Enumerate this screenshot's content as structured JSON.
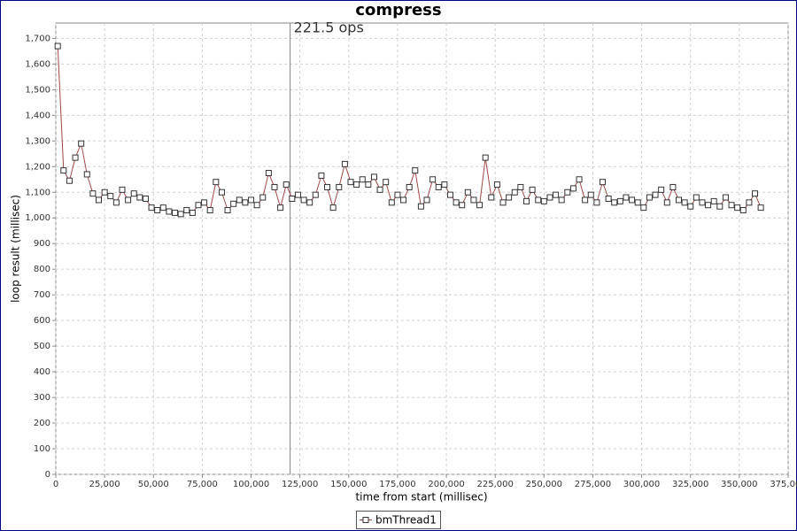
{
  "chart_data": {
    "type": "line",
    "title": "compress",
    "x_label": "time from start (millisec)",
    "y_label": "loop result (millisec)",
    "xlim": [
      0,
      375000
    ],
    "ylim": [
      0,
      1760
    ],
    "xticks": [
      0,
      {
        "value": 25000,
        "label": "25,000"
      },
      {
        "value": 50000,
        "label": "50,000"
      },
      {
        "value": 75000,
        "label": "75,000"
      },
      {
        "value": 100000,
        "label": "100,000"
      },
      {
        "value": 125000,
        "label": "125,000"
      },
      {
        "value": 150000,
        "label": "150,000"
      },
      {
        "value": 175000,
        "label": "175,000"
      },
      {
        "value": 200000,
        "label": "200,000"
      },
      {
        "value": 225000,
        "label": "225,000"
      },
      {
        "value": 250000,
        "label": "250,000"
      },
      {
        "value": 275000,
        "label": "275,000"
      },
      {
        "value": 300000,
        "label": "300,000"
      },
      {
        "value": 325000,
        "label": "325,000"
      },
      {
        "value": 350000,
        "label": "350,000"
      },
      {
        "value": 375000,
        "label": "375,000"
      }
    ],
    "yticks": [
      0,
      100,
      200,
      300,
      400,
      500,
      600,
      700,
      800,
      900,
      {
        "value": 1000,
        "label": "1,000"
      },
      {
        "value": 1100,
        "label": "1,100"
      },
      {
        "value": 1200,
        "label": "1,200"
      },
      {
        "value": 1300,
        "label": "1,300"
      },
      {
        "value": 1400,
        "label": "1,400"
      },
      {
        "value": 1500,
        "label": "1,500"
      },
      {
        "value": 1600,
        "label": "1,600"
      },
      {
        "value": 1700,
        "label": "1,700"
      }
    ],
    "grid": true,
    "marker": {
      "x": 120000,
      "label": "221.5 ops"
    },
    "x": [
      1000,
      4000,
      7000,
      10000,
      13000,
      16000,
      19000,
      22000,
      25000,
      28000,
      31000,
      34000,
      37000,
      40000,
      43000,
      46000,
      49000,
      52000,
      55000,
      58000,
      61000,
      64000,
      67000,
      70000,
      73000,
      76000,
      79000,
      82000,
      85000,
      88000,
      91000,
      94000,
      97000,
      100000,
      103000,
      106000,
      109000,
      112000,
      115000,
      118000,
      121000,
      124000,
      127000,
      130000,
      133000,
      136000,
      139000,
      142000,
      145000,
      148000,
      151000,
      154000,
      157000,
      160000,
      163000,
      166000,
      169000,
      172000,
      175000,
      178000,
      181000,
      184000,
      187000,
      190000,
      193000,
      196000,
      199000,
      202000,
      205000,
      208000,
      211000,
      214000,
      217000,
      220000,
      223000,
      226000,
      229000,
      232000,
      235000,
      238000,
      241000,
      244000,
      247000,
      250000,
      253000,
      256000,
      259000,
      262000,
      265000,
      268000,
      271000,
      274000,
      277000,
      280000,
      283000,
      286000,
      289000,
      292000,
      295000,
      298000,
      301000,
      304000,
      307000,
      310000,
      313000,
      316000,
      319000,
      322000,
      325000,
      328000,
      331000,
      334000,
      337000,
      340000,
      343000,
      346000,
      349000,
      352000,
      355000,
      358000,
      361000
    ],
    "series": [
      {
        "name": "bmThread1",
        "color": "#a04848",
        "marker_color": "#333333",
        "values": [
          1670,
          1185,
          1145,
          1235,
          1290,
          1170,
          1095,
          1070,
          1100,
          1085,
          1060,
          1110,
          1070,
          1095,
          1080,
          1075,
          1040,
          1030,
          1040,
          1025,
          1020,
          1015,
          1030,
          1020,
          1050,
          1060,
          1030,
          1140,
          1100,
          1030,
          1055,
          1070,
          1060,
          1070,
          1050,
          1080,
          1175,
          1120,
          1040,
          1130,
          1075,
          1090,
          1070,
          1060,
          1090,
          1165,
          1120,
          1040,
          1120,
          1210,
          1140,
          1130,
          1150,
          1130,
          1160,
          1110,
          1140,
          1060,
          1090,
          1070,
          1120,
          1185,
          1045,
          1070,
          1150,
          1120,
          1130,
          1090,
          1060,
          1050,
          1100,
          1070,
          1050,
          1235,
          1080,
          1130,
          1060,
          1080,
          1100,
          1120,
          1065,
          1110,
          1070,
          1065,
          1080,
          1090,
          1070,
          1100,
          1115,
          1150,
          1070,
          1090,
          1060,
          1140,
          1075,
          1060,
          1065,
          1080,
          1070,
          1060,
          1040,
          1080,
          1090,
          1110,
          1060,
          1120,
          1070,
          1060,
          1045,
          1080,
          1060,
          1050,
          1065,
          1045,
          1080,
          1050,
          1040,
          1030,
          1060,
          1095,
          1040
        ]
      }
    ]
  }
}
